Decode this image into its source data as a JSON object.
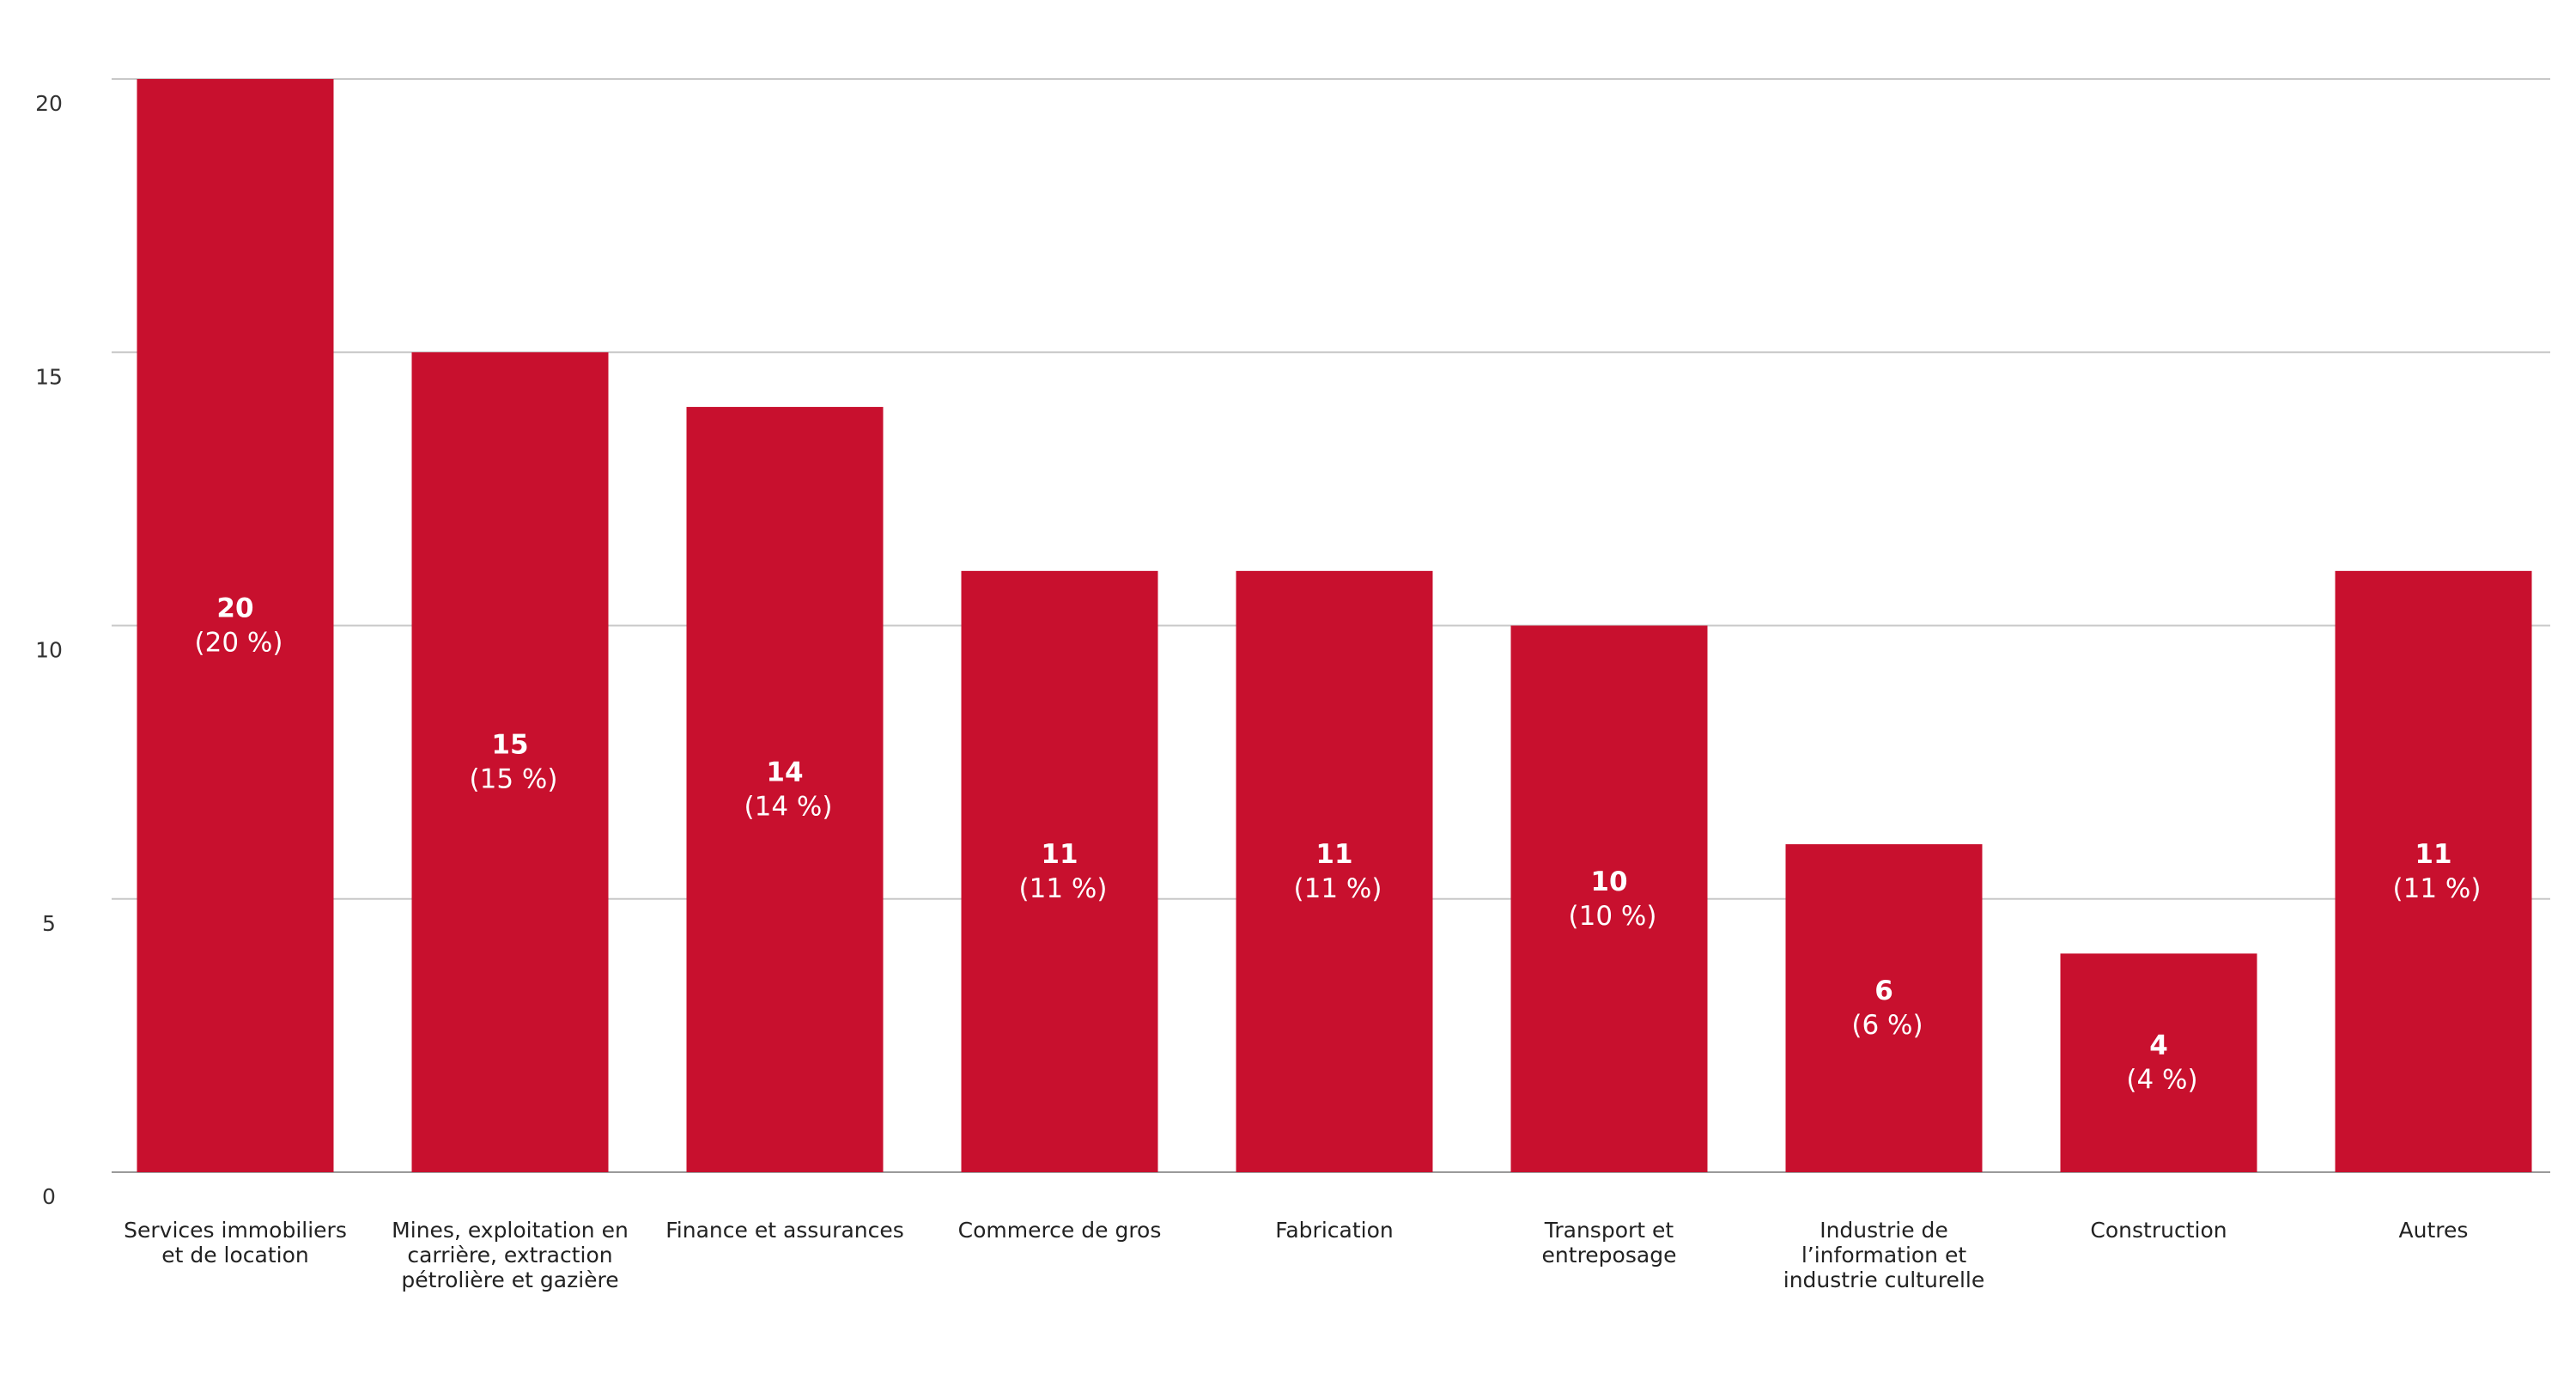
{
  "chart_data": {
    "type": "bar",
    "title": "",
    "xlabel": "",
    "ylabel": "",
    "ylim": [
      0,
      20
    ],
    "yticks": [
      "0",
      "5",
      "10",
      "15",
      "20"
    ],
    "grid": true,
    "bar_color": "#c8102e",
    "categories": [
      "Services immobiliers et de location",
      "Mines, exploitation en carrière, extraction pétrolière et gazière",
      "Finance et assurances",
      "Commerce de gros",
      "Fabrication",
      "Transport et entreposage",
      "Industrie de l’information et industrie culturelle",
      "Construction",
      "Autres"
    ],
    "category_label_lines": [
      [
        "Services immobiliers",
        "et de location"
      ],
      [
        "Mines, exploitation en",
        "carrière, extraction",
        "pétrolière et gazière"
      ],
      [
        "Finance et assurances"
      ],
      [
        "Commerce de gros"
      ],
      [
        "Fabrication"
      ],
      [
        "Transport et",
        "entreposage"
      ],
      [
        "Industrie de",
        "l’information et",
        "industrie culturelle"
      ],
      [
        "Construction"
      ],
      [
        "Autres"
      ]
    ],
    "values": [
      20,
      15,
      14,
      11,
      11,
      10,
      6,
      4,
      11
    ],
    "value_labels": [
      "20",
      "15",
      "14",
      "11",
      "11",
      "10",
      "6",
      "4",
      "11"
    ],
    "percent_labels": [
      "(20 %)",
      "(15 %)",
      "(14 %)",
      "(11 %)",
      "(11 %)",
      "(10 %)",
      "(6 %)",
      "(4 %)",
      "(11 %)"
    ]
  }
}
